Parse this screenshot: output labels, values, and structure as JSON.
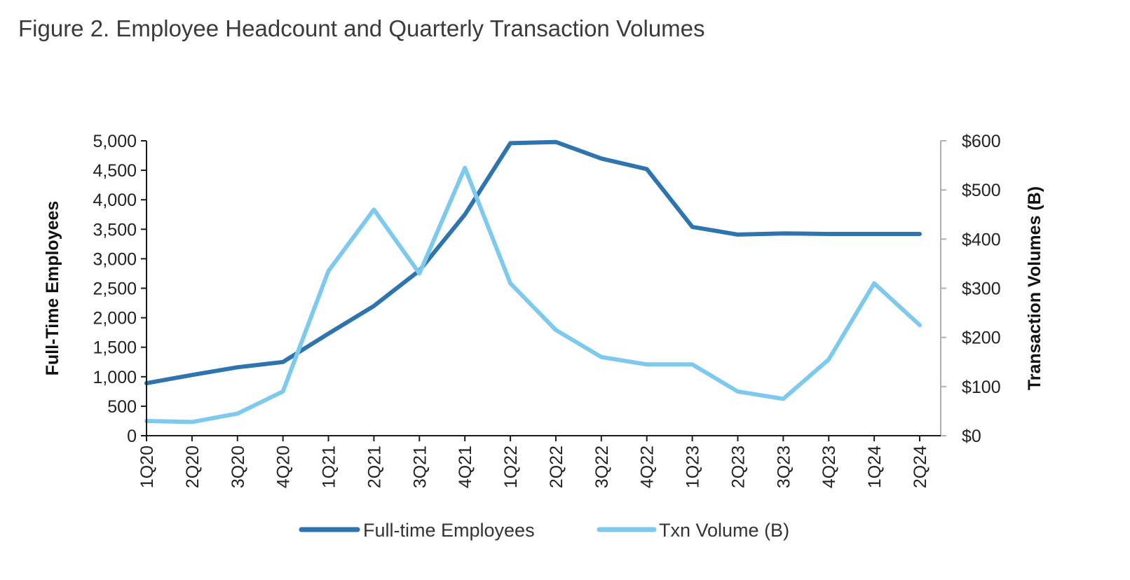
{
  "figure_title": "Figure 2. Employee Headcount and Quarterly Transaction Volumes",
  "chart_data": {
    "type": "line",
    "categories": [
      "1Q20",
      "2Q20",
      "3Q20",
      "4Q20",
      "1Q21",
      "2Q21",
      "3Q21",
      "4Q21",
      "1Q22",
      "2Q22",
      "3Q22",
      "4Q22",
      "1Q23",
      "2Q23",
      "3Q23",
      "4Q23",
      "1Q24",
      "2Q24"
    ],
    "series": [
      {
        "name": "Full-time Employees",
        "axis": "left",
        "color": "#2e75b0",
        "values": [
          890,
          1030,
          1160,
          1250,
          1730,
          2200,
          2800,
          3750,
          4960,
          4980,
          4700,
          4520,
          3540,
          3410,
          3430,
          3420,
          3420,
          3420
        ]
      },
      {
        "name": "Txn Volume (B)",
        "axis": "right",
        "color": "#7ecaee",
        "values": [
          30,
          28,
          45,
          90,
          335,
          460,
          330,
          545,
          310,
          215,
          160,
          145,
          145,
          90,
          75,
          155,
          310,
          225
        ]
      }
    ],
    "y_left": {
      "label": "Full-Time Employees",
      "lim": [
        0,
        5000
      ],
      "ticks": [
        0,
        500,
        1000,
        1500,
        2000,
        2500,
        3000,
        3500,
        4000,
        4500,
        5000
      ],
      "tick_labels": [
        "0",
        "500",
        "1,000",
        "1,500",
        "2,000",
        "2,500",
        "3,000",
        "3,500",
        "4,000",
        "4,500",
        "5,000"
      ]
    },
    "y_right": {
      "label": "Transaction Volumes (B)",
      "lim": [
        0,
        600
      ],
      "ticks": [
        0,
        100,
        200,
        300,
        400,
        500,
        600
      ],
      "tick_labels": [
        "$0",
        "$100",
        "$200",
        "$300",
        "$400",
        "$500",
        "$600"
      ]
    },
    "grid": false,
    "legend_position": "bottom"
  }
}
